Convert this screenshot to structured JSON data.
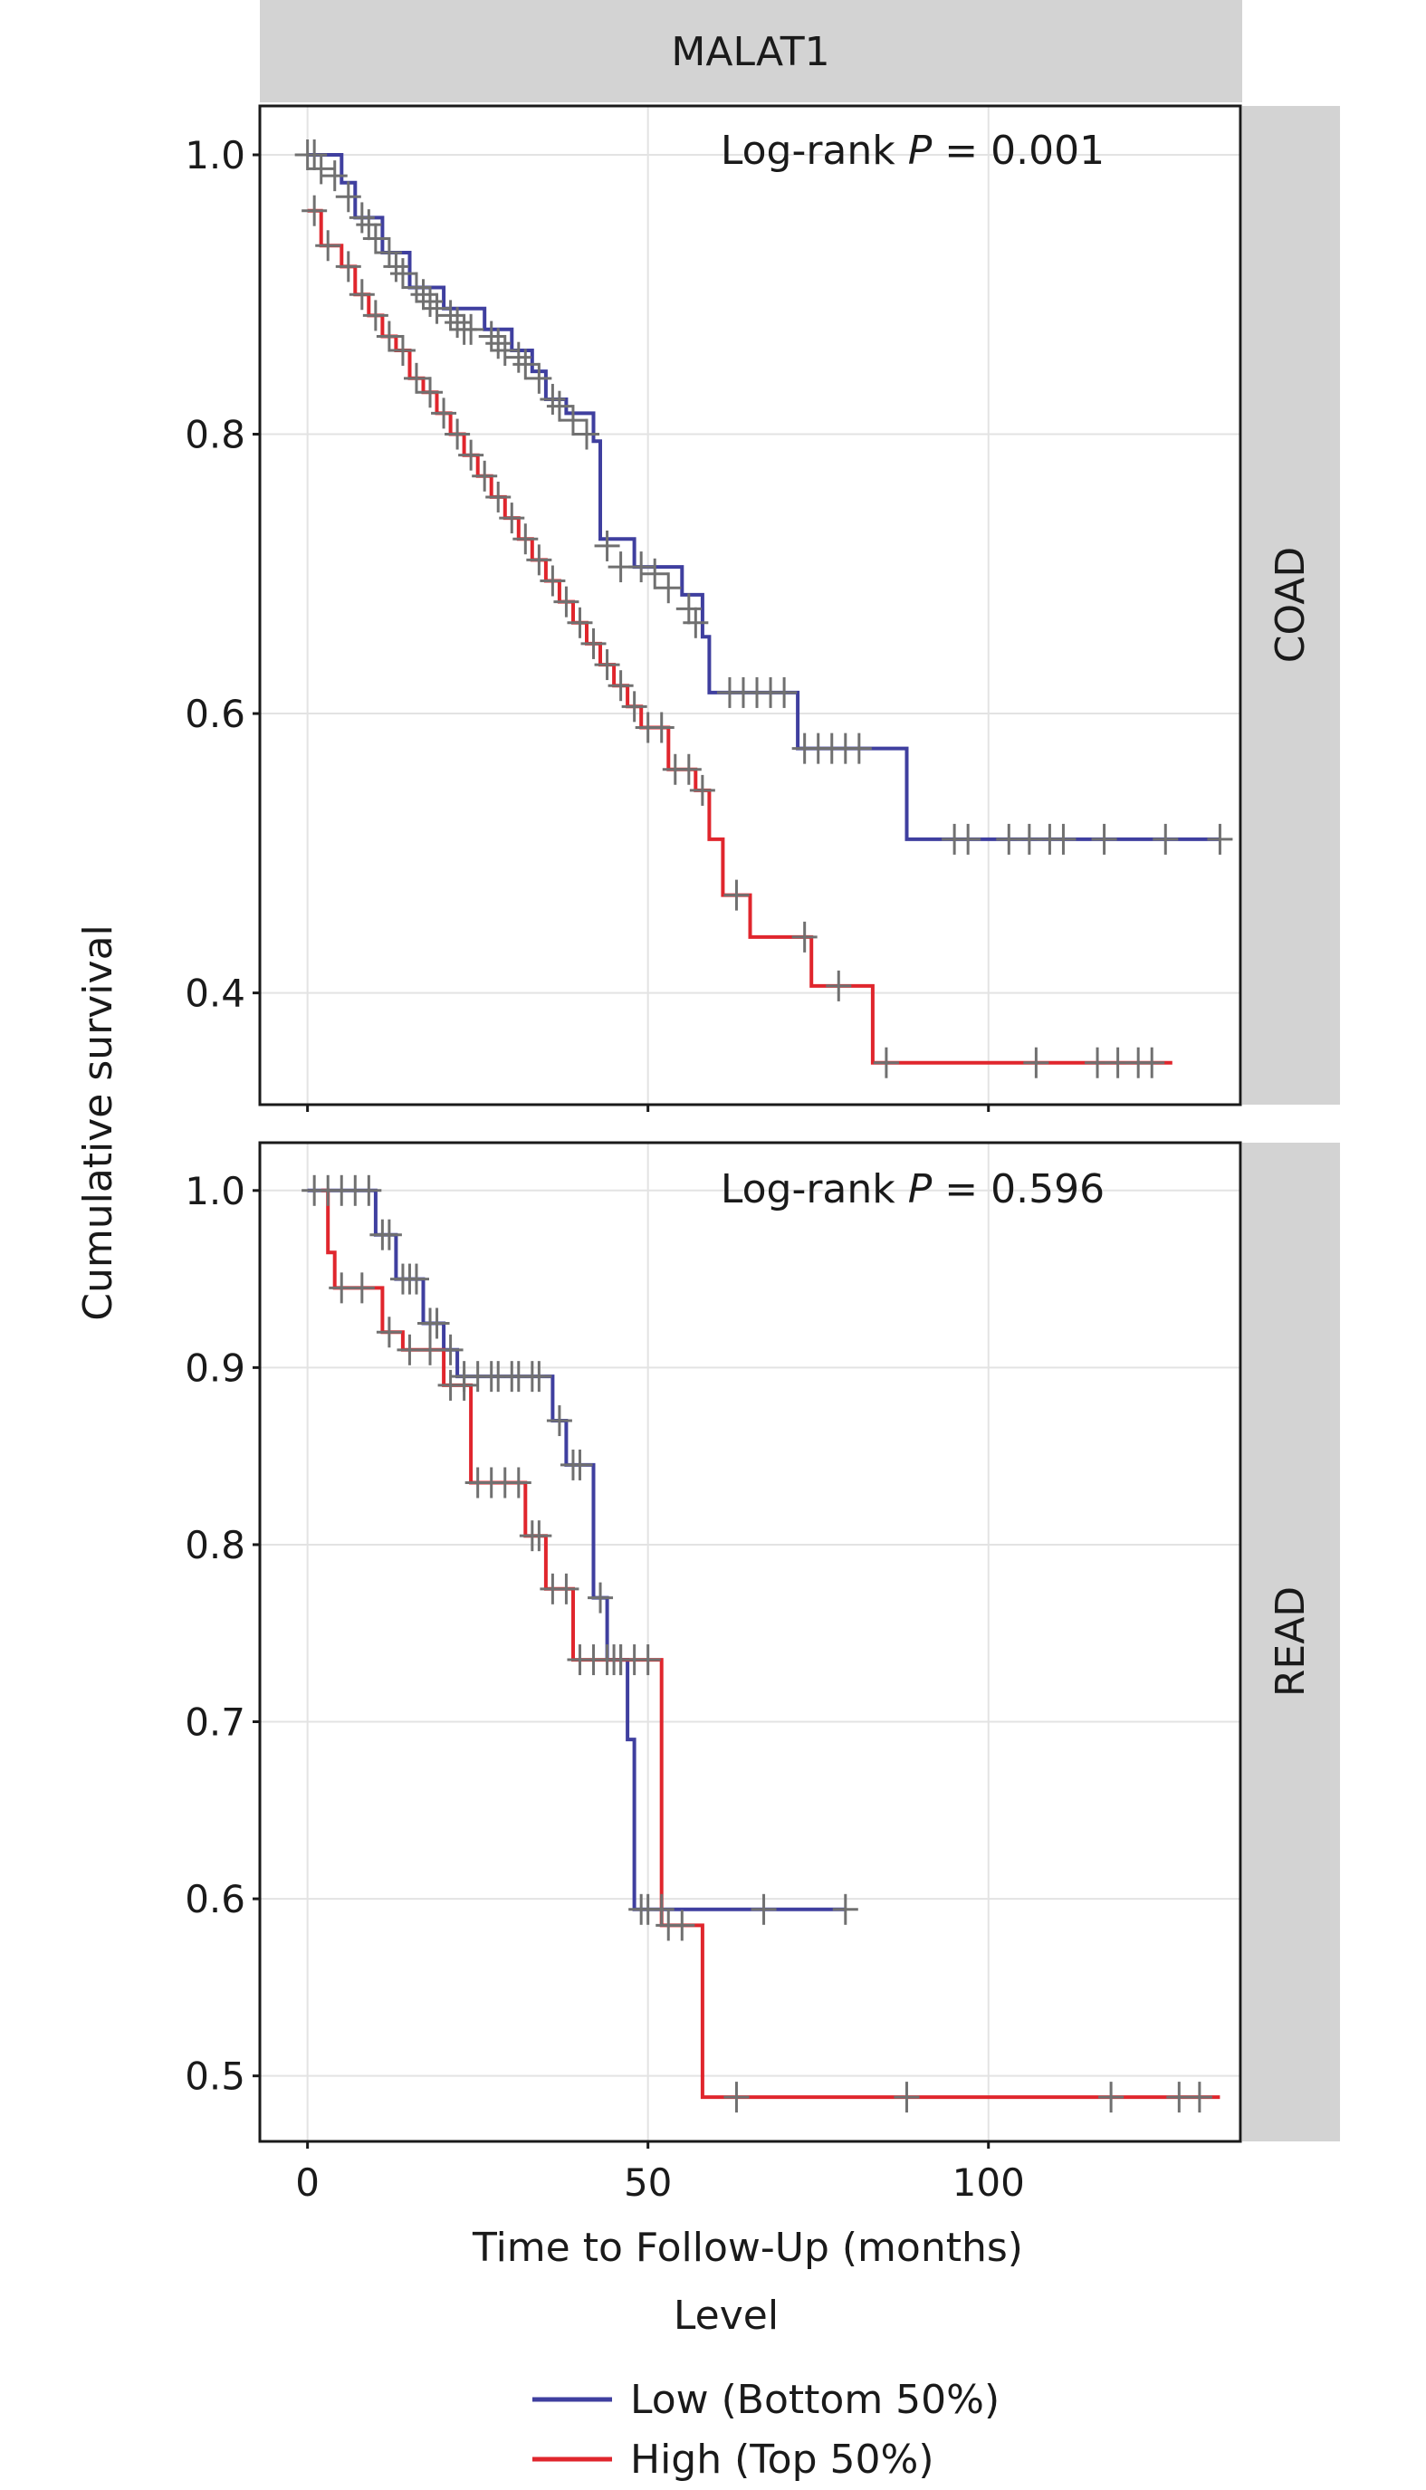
{
  "figure": {
    "strip_title": "MALAT1",
    "ylabel": "Cumulative survival",
    "xlabel": "Time to Follow-Up (months)",
    "legend_title": "Level"
  },
  "colors": {
    "low": "#3f3f9f",
    "high": "#e0262d",
    "strip": "#d3d3d3",
    "censor": "#707070"
  },
  "chart_data": [
    {
      "type": "line",
      "panel": "COAD",
      "annotation_prefix": "Log-rank ",
      "annotation_p": "P",
      "annotation_value": " = 0.001",
      "xlim": [
        -7,
        137
      ],
      "ylim": [
        0.32,
        1.035
      ],
      "x_ticks": [
        0,
        50,
        100
      ],
      "y_ticks": [
        0.4,
        0.6,
        0.8,
        1.0
      ],
      "y_tick_labels": [
        "0.4",
        "0.6",
        "0.8",
        "1.0"
      ],
      "grid": true,
      "series": [
        {
          "name": "Low (Bottom 50%)",
          "color": "#3f3f9f",
          "steps": [
            [
              0,
              1.0
            ],
            [
              5,
              0.98
            ],
            [
              7,
              0.955
            ],
            [
              11,
              0.93
            ],
            [
              15,
              0.905
            ],
            [
              20,
              0.89
            ],
            [
              26,
              0.875
            ],
            [
              30,
              0.86
            ],
            [
              33,
              0.845
            ],
            [
              35,
              0.825
            ],
            [
              38,
              0.815
            ],
            [
              42,
              0.795
            ],
            [
              43,
              0.725
            ],
            [
              48,
              0.705
            ],
            [
              55,
              0.685
            ],
            [
              58,
              0.655
            ],
            [
              59,
              0.615
            ],
            [
              72,
              0.575
            ],
            [
              88,
              0.51
            ],
            [
              134,
              0.51
            ]
          ],
          "censors": [
            [
              0,
              1.0
            ],
            [
              1,
              1.0
            ],
            [
              2,
              0.99
            ],
            [
              4,
              0.985
            ],
            [
              6,
              0.97
            ],
            [
              8,
              0.955
            ],
            [
              9,
              0.95
            ],
            [
              10,
              0.94
            ],
            [
              12,
              0.93
            ],
            [
              13,
              0.92
            ],
            [
              14,
              0.915
            ],
            [
              16,
              0.905
            ],
            [
              17,
              0.9
            ],
            [
              18,
              0.895
            ],
            [
              19,
              0.89
            ],
            [
              21,
              0.885
            ],
            [
              22,
              0.88
            ],
            [
              23,
              0.875
            ],
            [
              24,
              0.875
            ],
            [
              27,
              0.87
            ],
            [
              28,
              0.865
            ],
            [
              29,
              0.86
            ],
            [
              31,
              0.855
            ],
            [
              32,
              0.85
            ],
            [
              34,
              0.84
            ],
            [
              36,
              0.825
            ],
            [
              37,
              0.82
            ],
            [
              39,
              0.81
            ],
            [
              41,
              0.8
            ],
            [
              44,
              0.72
            ],
            [
              46,
              0.705
            ],
            [
              49,
              0.705
            ],
            [
              51,
              0.7
            ],
            [
              53,
              0.69
            ],
            [
              56,
              0.675
            ],
            [
              57,
              0.665
            ],
            [
              62,
              0.615
            ],
            [
              64,
              0.615
            ],
            [
              66,
              0.615
            ],
            [
              68,
              0.615
            ],
            [
              70,
              0.615
            ],
            [
              73,
              0.575
            ],
            [
              75,
              0.575
            ],
            [
              77,
              0.575
            ],
            [
              79,
              0.575
            ],
            [
              81,
              0.575
            ],
            [
              95,
              0.51
            ],
            [
              97,
              0.51
            ],
            [
              103,
              0.51
            ],
            [
              106,
              0.51
            ],
            [
              109,
              0.51
            ],
            [
              111,
              0.51
            ],
            [
              117,
              0.51
            ],
            [
              126,
              0.51
            ],
            [
              134,
              0.51
            ]
          ]
        },
        {
          "name": "High (Top 50%)",
          "color": "#e0262d",
          "steps": [
            [
              0,
              0.96
            ],
            [
              2,
              0.935
            ],
            [
              5,
              0.92
            ],
            [
              7,
              0.9
            ],
            [
              9,
              0.885
            ],
            [
              11,
              0.87
            ],
            [
              13,
              0.86
            ],
            [
              15,
              0.84
            ],
            [
              17,
              0.83
            ],
            [
              19,
              0.815
            ],
            [
              21,
              0.8
            ],
            [
              23,
              0.785
            ],
            [
              25,
              0.77
            ],
            [
              27,
              0.755
            ],
            [
              29,
              0.74
            ],
            [
              31,
              0.725
            ],
            [
              33,
              0.71
            ],
            [
              35,
              0.695
            ],
            [
              37,
              0.68
            ],
            [
              39,
              0.665
            ],
            [
              41,
              0.65
            ],
            [
              43,
              0.635
            ],
            [
              45,
              0.62
            ],
            [
              47,
              0.605
            ],
            [
              49,
              0.59
            ],
            [
              53,
              0.56
            ],
            [
              57,
              0.545
            ],
            [
              59,
              0.51
            ],
            [
              61,
              0.47
            ],
            [
              65,
              0.44
            ],
            [
              74,
              0.405
            ],
            [
              83,
              0.35
            ],
            [
              127,
              0.35
            ]
          ],
          "censors": [
            [
              1,
              0.96
            ],
            [
              3,
              0.935
            ],
            [
              6,
              0.92
            ],
            [
              8,
              0.9
            ],
            [
              10,
              0.885
            ],
            [
              12,
              0.87
            ],
            [
              14,
              0.86
            ],
            [
              16,
              0.84
            ],
            [
              18,
              0.83
            ],
            [
              20,
              0.815
            ],
            [
              22,
              0.8
            ],
            [
              24,
              0.785
            ],
            [
              26,
              0.77
            ],
            [
              28,
              0.755
            ],
            [
              30,
              0.74
            ],
            [
              32,
              0.725
            ],
            [
              34,
              0.71
            ],
            [
              36,
              0.695
            ],
            [
              38,
              0.68
            ],
            [
              40,
              0.665
            ],
            [
              42,
              0.65
            ],
            [
              44,
              0.635
            ],
            [
              46,
              0.62
            ],
            [
              48,
              0.605
            ],
            [
              50,
              0.59
            ],
            [
              52,
              0.59
            ],
            [
              54,
              0.56
            ],
            [
              56,
              0.56
            ],
            [
              58,
              0.545
            ],
            [
              63,
              0.47
            ],
            [
              73,
              0.44
            ],
            [
              78,
              0.405
            ],
            [
              85,
              0.35
            ],
            [
              107,
              0.35
            ],
            [
              116,
              0.35
            ],
            [
              119,
              0.35
            ],
            [
              122,
              0.35
            ],
            [
              124,
              0.35
            ]
          ]
        }
      ]
    },
    {
      "type": "line",
      "panel": "READ",
      "annotation_prefix": "Log-rank ",
      "annotation_p": "P",
      "annotation_value": " = 0.596",
      "xlim": [
        -7,
        137
      ],
      "ylim": [
        0.463,
        1.027
      ],
      "x_ticks": [
        0,
        50,
        100
      ],
      "x_tick_labels": [
        "0",
        "50",
        "100"
      ],
      "y_ticks": [
        0.5,
        0.6,
        0.7,
        0.8,
        0.9,
        1.0
      ],
      "y_tick_labels": [
        "0.5",
        "0.6",
        "0.7",
        "0.8",
        "0.9",
        "1.0"
      ],
      "grid": true,
      "series": [
        {
          "name": "Low (Bottom 50%)",
          "color": "#3f3f9f",
          "steps": [
            [
              0,
              1.0
            ],
            [
              10,
              0.975
            ],
            [
              13,
              0.95
            ],
            [
              17,
              0.925
            ],
            [
              20,
              0.91
            ],
            [
              22,
              0.895
            ],
            [
              36,
              0.87
            ],
            [
              38,
              0.845
            ],
            [
              42,
              0.77
            ],
            [
              44,
              0.735
            ],
            [
              47,
              0.69
            ],
            [
              48,
              0.594
            ],
            [
              79,
              0.594
            ]
          ],
          "censors": [
            [
              1,
              1.0
            ],
            [
              3,
              1.0
            ],
            [
              5,
              1.0
            ],
            [
              7,
              1.0
            ],
            [
              9,
              1.0
            ],
            [
              11,
              0.975
            ],
            [
              12,
              0.975
            ],
            [
              14,
              0.95
            ],
            [
              15,
              0.95
            ],
            [
              16,
              0.95
            ],
            [
              18,
              0.925
            ],
            [
              19,
              0.925
            ],
            [
              21,
              0.91
            ],
            [
              23,
              0.895
            ],
            [
              25,
              0.895
            ],
            [
              27,
              0.895
            ],
            [
              28,
              0.895
            ],
            [
              30,
              0.895
            ],
            [
              31,
              0.895
            ],
            [
              33,
              0.895
            ],
            [
              34,
              0.895
            ],
            [
              37,
              0.87
            ],
            [
              39,
              0.845
            ],
            [
              40,
              0.845
            ],
            [
              43,
              0.77
            ],
            [
              45,
              0.735
            ],
            [
              46,
              0.735
            ],
            [
              49,
              0.594
            ],
            [
              50,
              0.594
            ],
            [
              52,
              0.594
            ],
            [
              67,
              0.594
            ],
            [
              79,
              0.594
            ]
          ]
        },
        {
          "name": "High (Top 50%)",
          "color": "#e0262d",
          "steps": [
            [
              2,
              1.0
            ],
            [
              3,
              0.965
            ],
            [
              4,
              0.945
            ],
            [
              11,
              0.92
            ],
            [
              14,
              0.91
            ],
            [
              20,
              0.89
            ],
            [
              24,
              0.835
            ],
            [
              32,
              0.805
            ],
            [
              35,
              0.775
            ],
            [
              39,
              0.735
            ],
            [
              52,
              0.585
            ],
            [
              58,
              0.488
            ],
            [
              134,
              0.488
            ]
          ],
          "censors": [
            [
              5,
              0.945
            ],
            [
              8,
              0.945
            ],
            [
              12,
              0.92
            ],
            [
              15,
              0.91
            ],
            [
              18,
              0.91
            ],
            [
              21,
              0.89
            ],
            [
              23,
              0.89
            ],
            [
              25,
              0.835
            ],
            [
              27,
              0.835
            ],
            [
              29,
              0.835
            ],
            [
              31,
              0.835
            ],
            [
              33,
              0.805
            ],
            [
              34,
              0.805
            ],
            [
              36,
              0.775
            ],
            [
              38,
              0.775
            ],
            [
              40,
              0.735
            ],
            [
              42,
              0.735
            ],
            [
              44,
              0.735
            ],
            [
              46,
              0.735
            ],
            [
              48,
              0.735
            ],
            [
              50,
              0.735
            ],
            [
              53,
              0.585
            ],
            [
              55,
              0.585
            ],
            [
              63,
              0.488
            ],
            [
              88,
              0.488
            ],
            [
              118,
              0.488
            ],
            [
              128,
              0.488
            ],
            [
              131,
              0.488
            ]
          ]
        }
      ]
    }
  ]
}
